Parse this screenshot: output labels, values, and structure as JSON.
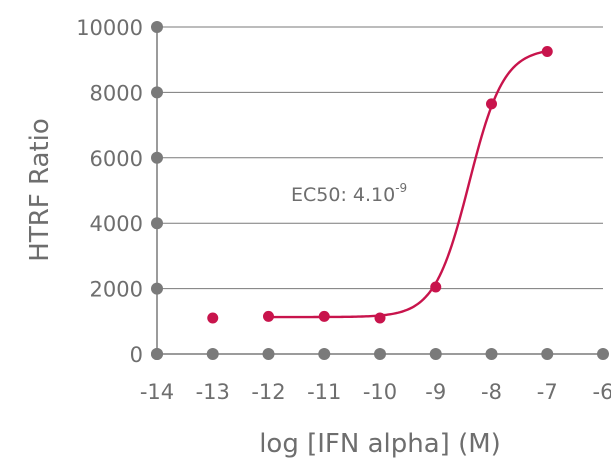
{
  "chart_data": {
    "type": "scatter",
    "xlabel": "log [IFN alpha] (M)",
    "ylabel": "HTRF Ratio",
    "xlim": [
      -14,
      -6
    ],
    "ylim": [
      0,
      10000
    ],
    "x_ticks": [
      "-14",
      "-13",
      "-12",
      "-11",
      "-10",
      "-9",
      "-8",
      "-7",
      "-6"
    ],
    "y_ticks": [
      "0",
      "2000",
      "4000",
      "6000",
      "8000",
      "10000"
    ],
    "grid": "horizontal",
    "annotation": {
      "text": "EC50: 4.10",
      "superscript": "-9"
    },
    "series": [
      {
        "points": [
          {
            "x": -13,
            "y": 1100
          },
          {
            "x": -12,
            "y": 1150
          },
          {
            "x": -11,
            "y": 1150
          },
          {
            "x": -10,
            "y": 1100
          },
          {
            "x": -9,
            "y": 2050
          },
          {
            "x": -8,
            "y": 7650
          },
          {
            "x": -7,
            "y": 9250
          }
        ],
        "fit": {
          "model": "4PL",
          "bottom": 1130,
          "top": 9350,
          "logEC50": -8.4,
          "hillSlope": 1.4,
          "x_range": [
            -12,
            -7
          ]
        }
      }
    ],
    "colors": {
      "series": "#c8144c",
      "axis": "#7a7a7a",
      "grid": "#7a7a7a",
      "text": "#6e6e6e"
    }
  }
}
